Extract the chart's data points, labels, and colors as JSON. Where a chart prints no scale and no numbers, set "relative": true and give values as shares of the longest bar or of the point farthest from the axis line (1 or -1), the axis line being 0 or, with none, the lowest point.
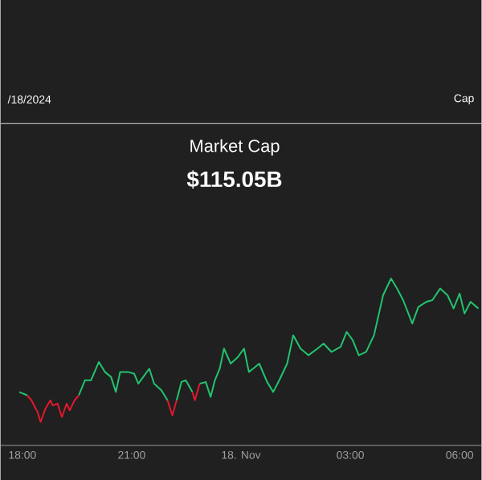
{
  "chart_data": {
    "type": "line",
    "title": "Market Cap",
    "subtitle": "$115.05B",
    "annotations": [
      "/18/2024",
      "Cap"
    ],
    "relative": true,
    "x": [
      "2024-11-17T17:55",
      "2024-11-17T18:08",
      "2024-11-17T18:15",
      "2024-11-17T18:25",
      "2024-11-17T18:30",
      "2024-11-17T18:38",
      "2024-11-17T18:46",
      "2024-11-17T18:50",
      "2024-11-17T18:58",
      "2024-11-17T19:05",
      "2024-11-17T19:13",
      "2024-11-17T19:18",
      "2024-11-17T19:26",
      "2024-11-17T19:33",
      "2024-11-17T19:43",
      "2024-11-17T19:53",
      "2024-11-17T20:06",
      "2024-11-17T20:16",
      "2024-11-17T20:26",
      "2024-11-17T20:34",
      "2024-11-17T20:41",
      "2024-11-17T20:54",
      "2024-11-17T21:04",
      "2024-11-17T21:11",
      "2024-11-17T21:19",
      "2024-11-17T21:29",
      "2024-11-17T21:37",
      "2024-11-17T21:49",
      "2024-11-17T21:59",
      "2024-11-17T22:07",
      "2024-11-17T22:14",
      "2024-11-17T22:22",
      "2024-11-17T22:29",
      "2024-11-17T22:40",
      "2024-11-17T22:44",
      "2024-11-17T22:52",
      "2024-11-17T23:02",
      "2024-11-17T23:10",
      "2024-11-17T23:17",
      "2024-11-17T23:25",
      "2024-11-17T23:32",
      "2024-11-17T23:43",
      "2024-11-17T23:55",
      "2024-11-18T00:05",
      "2024-11-18T00:13",
      "2024-11-18T00:20",
      "2024-11-18T00:30",
      "2024-11-18T00:43",
      "2024-11-18T00:53",
      "2024-11-18T01:03",
      "2024-11-18T01:16",
      "2024-11-18T01:26",
      "2024-11-18T01:38",
      "2024-11-18T01:51",
      "2024-11-18T02:06",
      "2024-11-18T02:16",
      "2024-11-18T02:29",
      "2024-11-18T02:44",
      "2024-11-18T02:54",
      "2024-11-18T03:04",
      "2024-11-18T03:14",
      "2024-11-18T03:26",
      "2024-11-18T03:39",
      "2024-11-18T03:54",
      "2024-11-18T04:07",
      "2024-11-18T04:17",
      "2024-11-18T04:27",
      "2024-11-18T04:42",
      "2024-11-18T04:52",
      "2024-11-18T05:05",
      "2024-11-18T05:15",
      "2024-11-18T05:28",
      "2024-11-18T05:40",
      "2024-11-18T05:50",
      "2024-11-18T06:00",
      "2024-11-18T06:08",
      "2024-11-18T06:18",
      "2024-11-18T06:31"
    ],
    "xlim": [
      "2024-11-17T17:24",
      "2024-11-18T06:36"
    ],
    "xticks": [
      {
        "value": "2024-11-17T18:00",
        "label": "18:00"
      },
      {
        "value": "2024-11-17T21:00",
        "label": "21:00"
      },
      {
        "value": "2024-11-18T00:00",
        "label": "18. Nov"
      },
      {
        "value": "2024-11-18T03:00",
        "label": "03:00"
      },
      {
        "value": "2024-11-18T06:00",
        "label": "06:00"
      }
    ],
    "series": [
      {
        "color": "#22c46e",
        "values": [
          0.32,
          0.3,
          null,
          null,
          null,
          null,
          null,
          null,
          null,
          null,
          null,
          null,
          null,
          0.3,
          0.39,
          0.39,
          0.5,
          0.44,
          0.41,
          0.32,
          0.44,
          0.44,
          0.43,
          0.37,
          0.41,
          0.46,
          0.37,
          0.33,
          0.27,
          null,
          0.27,
          0.38,
          0.39,
          0.32,
          null,
          0.37,
          0.38,
          0.29,
          0.39,
          0.46,
          0.58,
          0.49,
          0.53,
          0.58,
          0.44,
          0.46,
          0.49,
          0.38,
          0.32,
          0.39,
          0.49,
          0.66,
          0.58,
          0.54,
          0.58,
          0.61,
          0.56,
          0.59,
          0.68,
          0.63,
          0.54,
          0.56,
          0.66,
          0.9,
          1.0,
          0.94,
          0.87,
          0.73,
          0.83,
          0.86,
          0.87,
          0.94,
          0.9,
          0.82,
          0.91,
          0.79,
          0.86,
          0.82
        ]
      },
      {
        "color": "#e3182d",
        "values": [
          null,
          0.3,
          0.27,
          0.2,
          0.14,
          0.22,
          0.27,
          0.24,
          0.25,
          0.17,
          0.25,
          0.21,
          0.27,
          0.3,
          null,
          null,
          null,
          null,
          null,
          null,
          null,
          null,
          null,
          null,
          null,
          null,
          null,
          null,
          0.27,
          0.18,
          0.27,
          null,
          null,
          0.32,
          0.27,
          0.37,
          null,
          null,
          null,
          null,
          null,
          null,
          null,
          null,
          null,
          null,
          null,
          null,
          null,
          null,
          null,
          null,
          null,
          null,
          null,
          null,
          null,
          null,
          null,
          null,
          null,
          null,
          null,
          null,
          null,
          null,
          null,
          null,
          null,
          null,
          null,
          null,
          null,
          null,
          null,
          null,
          null,
          null
        ]
      }
    ]
  }
}
